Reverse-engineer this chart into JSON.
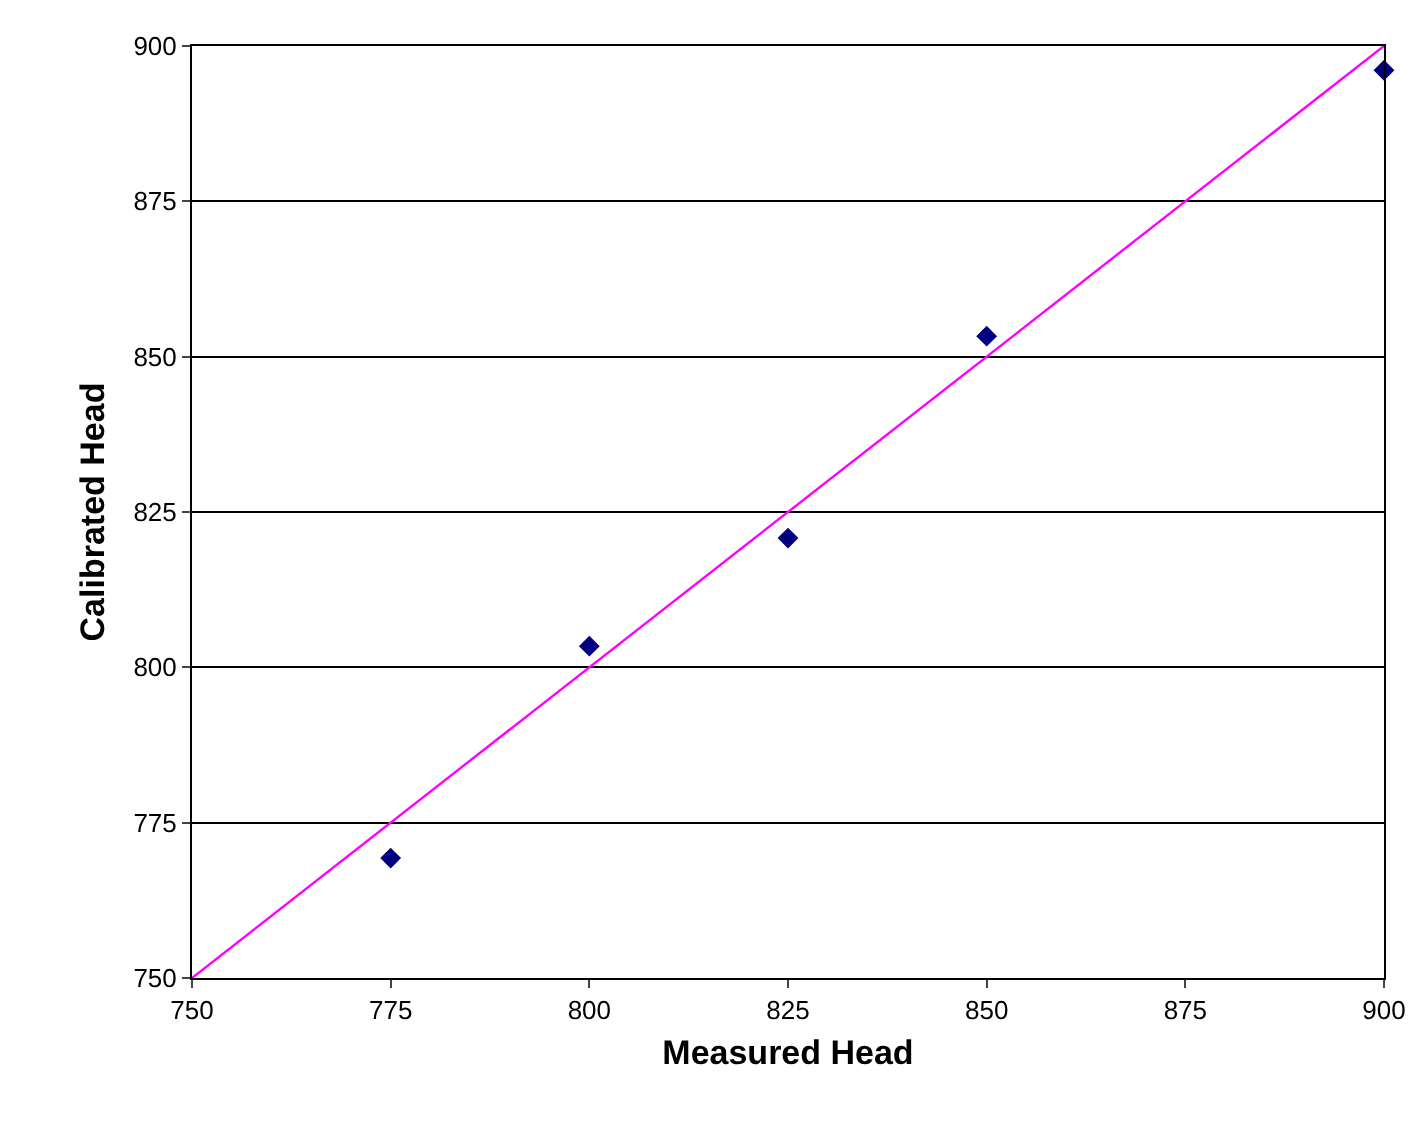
{
  "chart_data": {
    "type": "scatter",
    "xlabel": "Measured Head",
    "ylabel": "Calibrated Head",
    "xlim": [
      750,
      900
    ],
    "xticks": [
      750,
      775,
      800,
      825,
      850,
      875,
      900
    ],
    "ylim": [
      750,
      900
    ],
    "yticks": [
      750,
      775,
      800,
      825,
      850,
      875,
      900
    ],
    "grid": "y",
    "series": [
      {
        "marker": "diamond",
        "color": "#000080",
        "x": [
          775,
          800,
          825,
          850,
          900
        ],
        "values": [
          769.3,
          803.4,
          820.8,
          853.3,
          896.1
        ]
      },
      {
        "type": "line",
        "marker": "none",
        "color": "#ff00ff",
        "x": [
          750,
          900
        ],
        "values": [
          750,
          900
        ]
      }
    ]
  }
}
